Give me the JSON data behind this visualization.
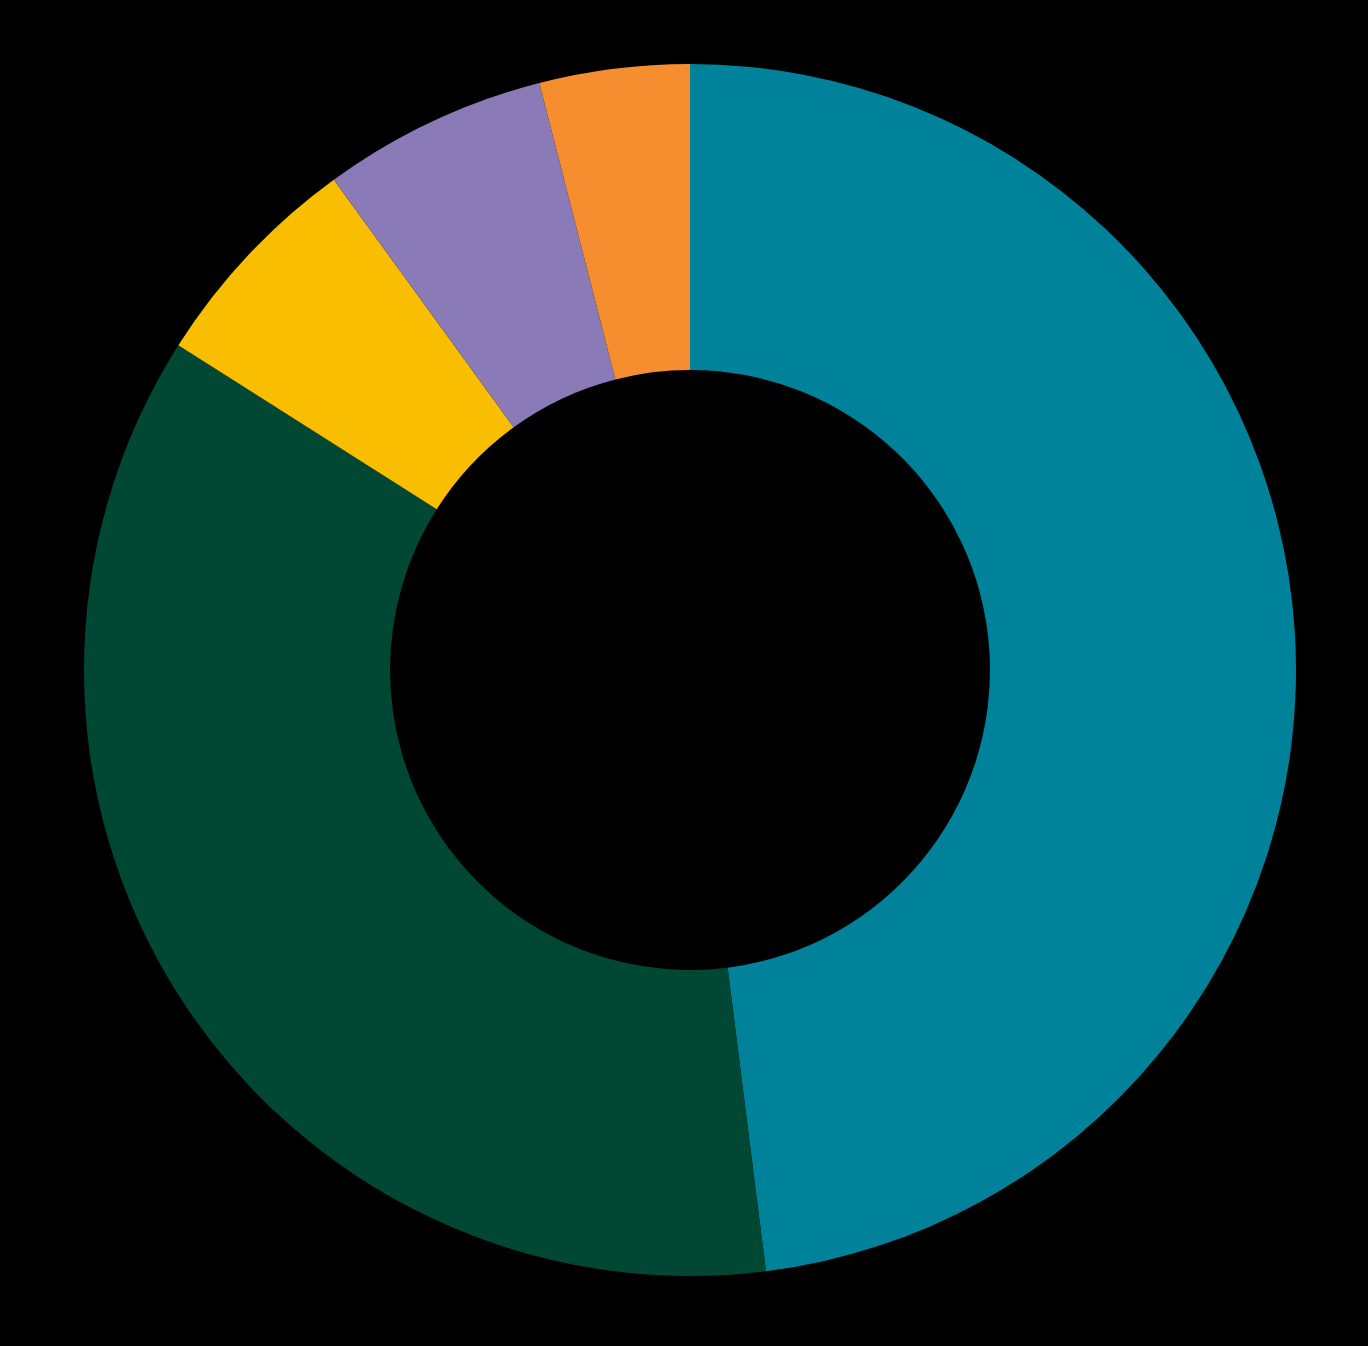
{
  "chart_data": {
    "type": "donut",
    "categories": [
      null,
      null,
      null,
      null,
      null
    ],
    "values": [
      48,
      36,
      6,
      6,
      4
    ],
    "colors": [
      "#00829b",
      "#004833",
      "#f9be00",
      "#8a7ab8",
      "#f68d2e"
    ]
  }
}
